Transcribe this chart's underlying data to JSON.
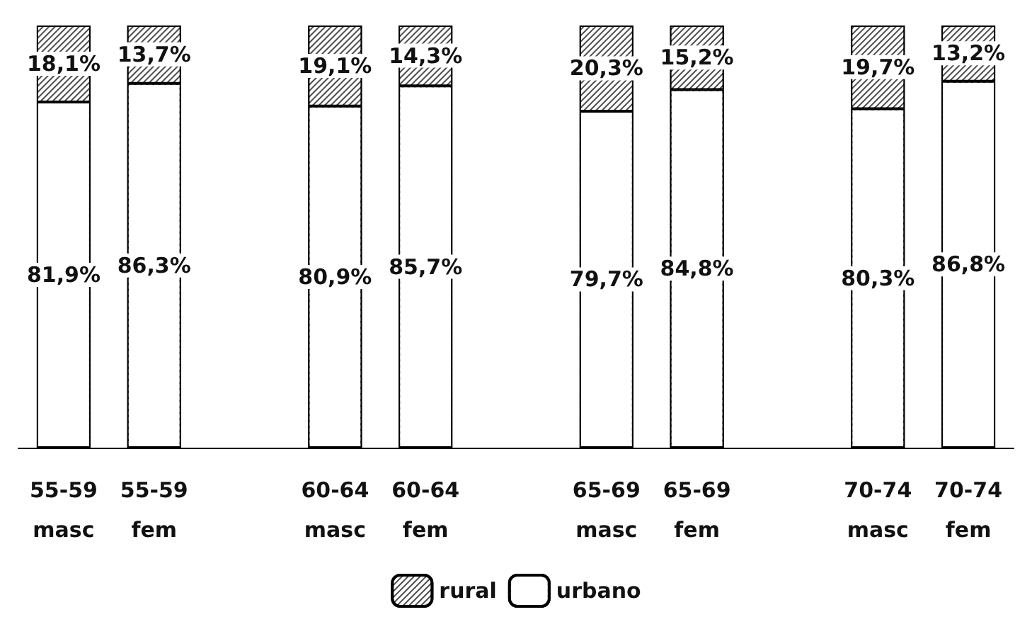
{
  "chart_data": {
    "type": "bar",
    "stacked": true,
    "categories": [
      "55-59\nmasc",
      "55-59\nfem",
      null,
      "60-64\nmasc",
      "60-64\nfem",
      null,
      "65-69\nmasc",
      "65-69\nfem",
      null,
      "70-74\nmasc",
      "70-74\nfem"
    ],
    "series": [
      {
        "name": "urbano",
        "color": "#ffffff",
        "values": [
          81.9,
          86.3,
          null,
          80.9,
          85.7,
          null,
          79.7,
          84.8,
          null,
          80.3,
          86.8
        ],
        "value_labels": [
          "81,9%",
          "86,3%",
          null,
          "80,9%",
          "85,7%",
          null,
          "79,7%",
          "84,8%",
          null,
          "80,3%",
          "86,8%"
        ]
      },
      {
        "name": "rural",
        "color": "#4d4d4d",
        "values": [
          18.1,
          13.7,
          null,
          19.1,
          14.3,
          null,
          20.3,
          15.2,
          null,
          19.7,
          13.2
        ],
        "value_labels": [
          "18,1%",
          "13,7%",
          null,
          "19,1%",
          "14,3%",
          null,
          "20,3%",
          "15,2%",
          null,
          "19,7%",
          "13,2%"
        ]
      }
    ],
    "legend": "bottom"
  }
}
